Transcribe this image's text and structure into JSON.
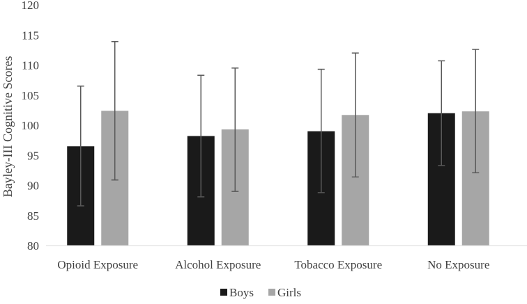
{
  "chart_data": {
    "type": "bar",
    "title": "",
    "xlabel": "",
    "ylabel": "Bayley-III Cognitive Scores",
    "ylim": [
      80,
      120
    ],
    "yticks": [
      80,
      85,
      90,
      95,
      100,
      105,
      110,
      115,
      120
    ],
    "grid": false,
    "legend_position": "bottom",
    "categories": [
      "Opioid Exposure",
      "Alcohol Exposure",
      "Tobacco Exposure",
      "No Exposure"
    ],
    "series": [
      {
        "name": "Boys",
        "color": "#1a1a1a",
        "values": [
          96.5,
          98.2,
          99.0,
          102.0
        ],
        "error_low": [
          86.6,
          88.1,
          88.8,
          93.3
        ],
        "error_high": [
          106.5,
          108.3,
          109.3,
          110.7
        ]
      },
      {
        "name": "Girls",
        "color": "#a6a6a6",
        "values": [
          102.4,
          99.3,
          101.7,
          102.3
        ],
        "error_low": [
          90.9,
          89.0,
          91.4,
          92.1
        ],
        "error_high": [
          113.9,
          109.5,
          112.0,
          112.6
        ]
      }
    ]
  }
}
